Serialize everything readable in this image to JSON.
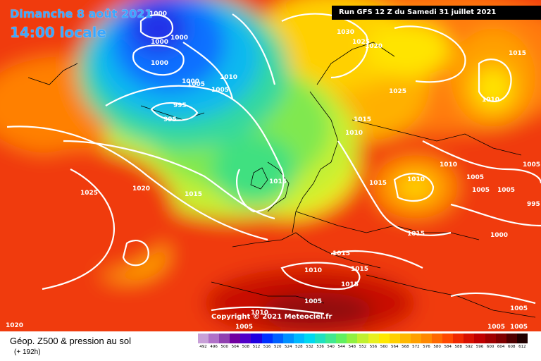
{
  "header": {
    "date": "Dimanche 8 août 2021",
    "time": "14:00 locale",
    "run": "Run GFS 12 Z du Samedi 31 juillet 2021"
  },
  "copyright": "Copyright © 2021 Meteociel.fr",
  "footer": {
    "title": "Géop. Z500 & pression au sol",
    "lead": "(+ 192h)"
  },
  "scale": {
    "labels": [
      "492",
      "496",
      "500",
      "504",
      "508",
      "512",
      "516",
      "520",
      "524",
      "528",
      "532",
      "536",
      "540",
      "544",
      "548",
      "552",
      "556",
      "560",
      "564",
      "568",
      "572",
      "576",
      "580",
      "584",
      "588",
      "592",
      "596",
      "600",
      "604",
      "608",
      "612"
    ],
    "colors": [
      "#c8a0d8",
      "#b070c8",
      "#9040b0",
      "#7000a0",
      "#5000c8",
      "#2000e0",
      "#0030ff",
      "#0060ff",
      "#0090ff",
      "#00b8ff",
      "#00d8f0",
      "#20e0c0",
      "#40e890",
      "#60f060",
      "#90f040",
      "#c0f030",
      "#e8f020",
      "#ffe800",
      "#ffd000",
      "#ffb800",
      "#ffa000",
      "#ff8800",
      "#ff6800",
      "#ff4800",
      "#f02800",
      "#d81000",
      "#c00000",
      "#a00000",
      "#800000",
      "#500000",
      "#200000"
    ]
  },
  "isobars": [
    {
      "text": "1000"
    },
    {
      "text": "1000"
    },
    {
      "text": "1000"
    },
    {
      "text": "1000"
    },
    {
      "text": "995"
    },
    {
      "text": "995"
    },
    {
      "text": "1010"
    },
    {
      "text": "1005"
    },
    {
      "text": "1000"
    },
    {
      "text": "1025"
    },
    {
      "text": "1020"
    },
    {
      "text": "1015"
    },
    {
      "text": "1030"
    },
    {
      "text": "1025"
    },
    {
      "text": "1020"
    },
    {
      "text": "1025"
    },
    {
      "text": "1015"
    },
    {
      "text": "1010"
    },
    {
      "text": "1015"
    },
    {
      "text": "1010"
    },
    {
      "text": "1015"
    },
    {
      "text": "1010"
    },
    {
      "text": "1005"
    },
    {
      "text": "1005"
    },
    {
      "text": "1005"
    },
    {
      "text": "995"
    },
    {
      "text": "1000"
    },
    {
      "text": "1015"
    },
    {
      "text": "1015"
    },
    {
      "text": "1015"
    },
    {
      "text": "1015"
    },
    {
      "text": "1010"
    },
    {
      "text": "1015"
    },
    {
      "text": "1010"
    },
    {
      "text": "1005"
    },
    {
      "text": "1005"
    },
    {
      "text": "1005"
    },
    {
      "text": "1005"
    },
    {
      "text": "1010"
    },
    {
      "text": "1020"
    },
    {
      "text": "1005"
    },
    {
      "text": "1005"
    },
    {
      "text": "1005"
    }
  ]
}
